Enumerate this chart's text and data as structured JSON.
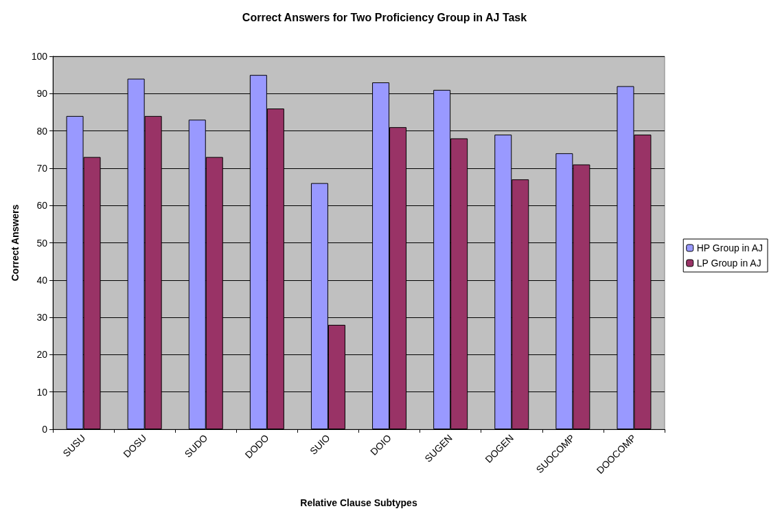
{
  "chart_data": {
    "type": "bar",
    "title": "Correct Answers for Two Proficiency Group in AJ Task",
    "xlabel": "Relative Clause Subtypes",
    "ylabel": "Correct Answers",
    "categories": [
      "SUSU",
      "DOSU",
      "SUDO",
      "DODO",
      "SUIO",
      "DOIO",
      "SUGEN",
      "DOGEN",
      "SUOCOMP",
      "DOOCOMP"
    ],
    "series": [
      {
        "name": "HP Group in AJ",
        "color": "#9999ff",
        "values": [
          84,
          94,
          83,
          95,
          66,
          93,
          91,
          79,
          74,
          92
        ]
      },
      {
        "name": "LP Group in AJ",
        "color": "#993366",
        "values": [
          73,
          84,
          73,
          86,
          28,
          81,
          78,
          67,
          71,
          79
        ]
      }
    ],
    "ylim": [
      0,
      100
    ],
    "yticks": [
      0,
      10,
      20,
      30,
      40,
      50,
      60,
      70,
      80,
      90,
      100
    ],
    "grid": "y",
    "legend": "right"
  }
}
